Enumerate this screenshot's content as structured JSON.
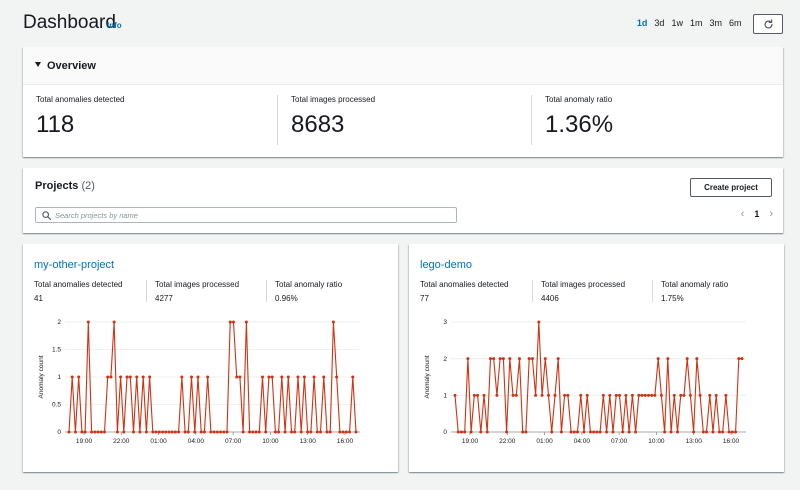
{
  "header": {
    "title": "Dashboard",
    "info": "Info",
    "ranges": [
      "1d",
      "3d",
      "1w",
      "1m",
      "3m",
      "6m"
    ],
    "active_range": "1d"
  },
  "overview": {
    "title": "Overview",
    "metrics": [
      {
        "label": "Total anomalies detected",
        "value": "118"
      },
      {
        "label": "Total images processed",
        "value": "8683"
      },
      {
        "label": "Total anomaly ratio",
        "value": "1.36%"
      }
    ]
  },
  "projects": {
    "title": "Projects",
    "count": "(2)",
    "create_label": "Create project",
    "search_placeholder": "Search projects by name",
    "page": "1"
  },
  "colors": {
    "accent": "#0073bb",
    "series": "#d13212"
  },
  "cards": [
    {
      "name": "my-other-project",
      "metrics": [
        {
          "label": "Total anomalies detected",
          "value": "41"
        },
        {
          "label": "Total images processed",
          "value": "4277"
        },
        {
          "label": "Total anomaly ratio",
          "value": "0.96%"
        }
      ],
      "chart_data": {
        "type": "line",
        "ylabel": "Anomaly count",
        "ylim": [
          0,
          2
        ],
        "yticks": [
          "0",
          "0.5",
          "1",
          "1.5",
          "2"
        ],
        "xticks": [
          "19:00",
          "22:00",
          "01:00",
          "04:00",
          "07:00",
          "10:00",
          "13:00",
          "16:00"
        ],
        "values": [
          0,
          1,
          0,
          1,
          0,
          0,
          2,
          0,
          0,
          0,
          0,
          0,
          1,
          1,
          2,
          0,
          1,
          0,
          1,
          1,
          0,
          1,
          0,
          1,
          0,
          1,
          0,
          0,
          0,
          0,
          0,
          0,
          0,
          0,
          0,
          1,
          0,
          0,
          1,
          0,
          1,
          0,
          0,
          1,
          0,
          0,
          0,
          0,
          0,
          0,
          2,
          2,
          1,
          1,
          0,
          2,
          0,
          0,
          0,
          0,
          1,
          0,
          1,
          1,
          0,
          0,
          1,
          0,
          1,
          0,
          0,
          1,
          0,
          1,
          0,
          0,
          1,
          0,
          0,
          1,
          0,
          0,
          2,
          1,
          0,
          0,
          0,
          0,
          1,
          0
        ]
      }
    },
    {
      "name": "lego-demo",
      "metrics": [
        {
          "label": "Total anomalies detected",
          "value": "77"
        },
        {
          "label": "Total images processed",
          "value": "4406"
        },
        {
          "label": "Total anomaly ratio",
          "value": "1.75%"
        }
      ],
      "chart_data": {
        "type": "line",
        "ylabel": "Anomaly count",
        "ylim": [
          0,
          3
        ],
        "yticks": [
          "0",
          "1",
          "2",
          "3"
        ],
        "xticks": [
          "19:00",
          "22:00",
          "01:00",
          "04:00",
          "07:00",
          "10:00",
          "13:00",
          "16:00"
        ],
        "values": [
          1,
          0,
          0,
          0,
          2,
          0,
          1,
          1,
          0,
          1,
          0,
          2,
          2,
          1,
          2,
          2,
          0,
          2,
          1,
          1,
          2,
          0,
          0,
          2,
          2,
          1,
          3,
          1,
          2,
          1,
          0,
          1,
          2,
          0,
          1,
          1,
          0,
          0,
          0,
          1,
          0,
          1,
          0,
          0,
          0,
          0,
          1,
          0,
          1,
          0,
          1,
          1,
          0,
          1,
          0,
          1,
          0,
          1,
          1,
          1,
          1,
          1,
          1,
          2,
          1,
          0,
          2,
          0,
          1,
          0,
          1,
          1,
          2,
          1,
          0,
          2,
          1,
          0,
          0,
          1,
          0,
          1,
          0,
          0,
          1,
          0,
          0,
          0,
          2,
          2
        ]
      }
    }
  ]
}
